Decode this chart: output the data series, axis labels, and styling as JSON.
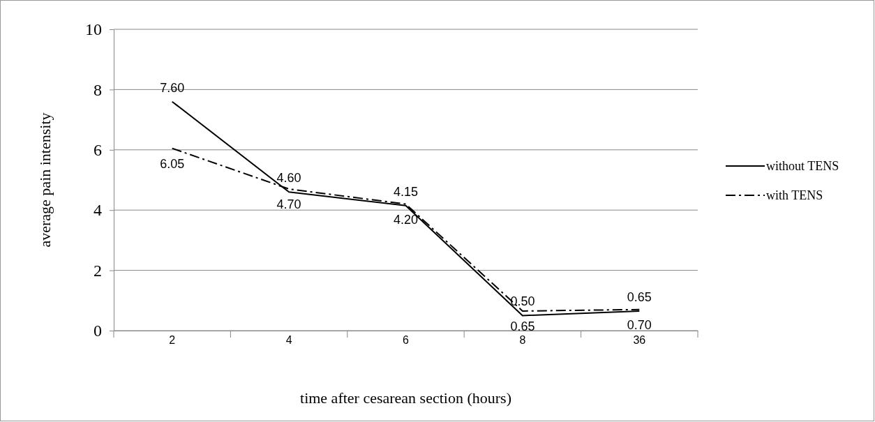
{
  "chart_data": {
    "type": "line",
    "xlabel": "time after cesarean section (hours)",
    "ylabel": "average pain intensity",
    "categories": [
      "2",
      "4",
      "6",
      "8",
      "36"
    ],
    "series": [
      {
        "name": "without TENS",
        "color": "#000000",
        "line_style": "solid",
        "values": [
          7.6,
          4.6,
          4.15,
          0.5,
          0.65
        ],
        "value_labels": [
          "7.60",
          "4.60",
          "4.15",
          "0.50",
          "0.65"
        ]
      },
      {
        "name": "with TENS",
        "color": "#000000",
        "line_style": "dashed",
        "values": [
          6.05,
          4.7,
          4.2,
          0.65,
          0.7
        ],
        "value_labels": [
          "6.05",
          "4.70",
          "4.20",
          "0.65",
          "0.70"
        ]
      }
    ],
    "ylim": [
      0,
      10
    ],
    "yticks": [
      0,
      2,
      4,
      6,
      8,
      10
    ],
    "grid": "y",
    "legend": "right"
  }
}
